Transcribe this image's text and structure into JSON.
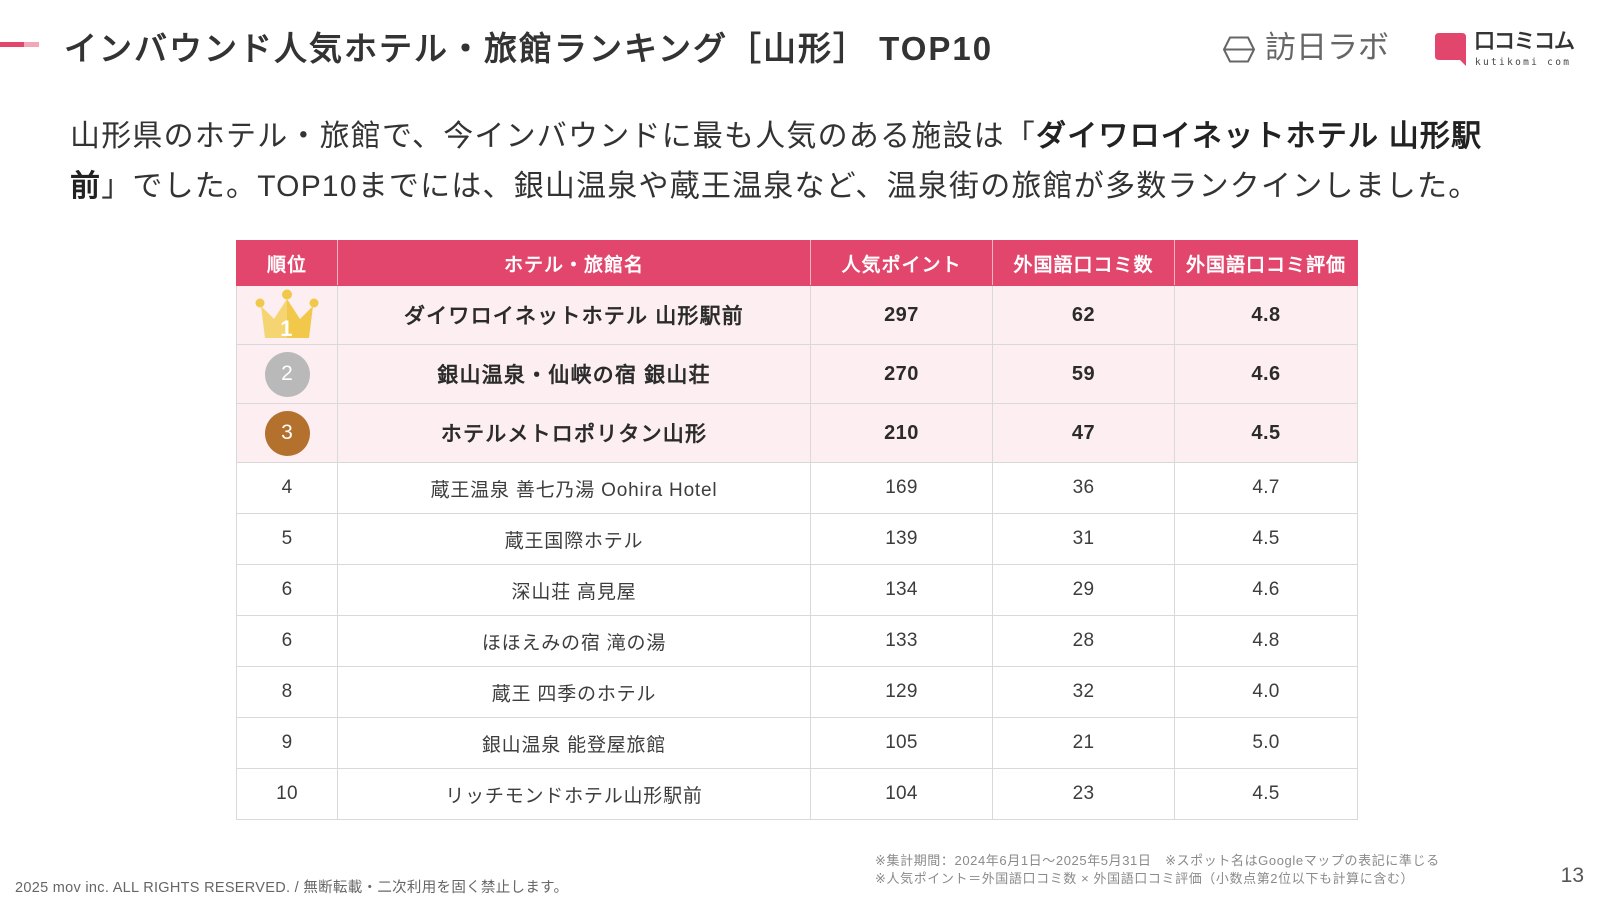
{
  "theme": {
    "accent_color": "#e2466c",
    "accent_light_color": "#f2a6b7",
    "header_bg": "#e2466c",
    "highlight_row_bg": "#fdeef2",
    "gold": "#f2c84b",
    "silver": "#b9b9b9",
    "bronze": "#b4702d"
  },
  "header": {
    "title": "インバウンド人気ホテル・旅館ランキング［山形］ TOP10"
  },
  "logos": {
    "honichi_labo": {
      "icon": "honichi-labo-logo-icon",
      "text": "訪日ラボ"
    },
    "kutikomi_com": {
      "icon": "kutikomi-com-logo-icon",
      "text": "口コミコム",
      "subtext": "kutikomi com"
    }
  },
  "intro": {
    "before": "山形県のホテル・旅館で、今インバウンドに最も人気のある施設は「",
    "highlight": "ダイワロイネットホテル 山形駅前",
    "after": "」でした。TOP10までには、銀山温泉や蔵王温泉など、温泉街の旅館が多数ランクインしました。"
  },
  "table": {
    "columns": [
      "順位",
      "ホテル・旅館名",
      "人気ポイント",
      "外国語口コミ数",
      "外国語口コミ評価"
    ],
    "rows": [
      {
        "rank": "1",
        "badge": "gold-crown-icon",
        "name": "ダイワロイネットホテル 山形駅前",
        "points": "297",
        "reviews": "62",
        "rating": "4.8"
      },
      {
        "rank": "2",
        "badge": "silver-circle-badge",
        "name": "銀山温泉・仙峡の宿 銀山荘",
        "points": "270",
        "reviews": "59",
        "rating": "4.6"
      },
      {
        "rank": "3",
        "badge": "bronze-circle-badge",
        "name": "ホテルメトロポリタン山形",
        "points": "210",
        "reviews": "47",
        "rating": "4.5"
      },
      {
        "rank": "4",
        "name": "蔵王温泉 善七乃湯 Oohira Hotel",
        "points": "169",
        "reviews": "36",
        "rating": "4.7"
      },
      {
        "rank": "5",
        "name": "蔵王国際ホテル",
        "points": "139",
        "reviews": "31",
        "rating": "4.5"
      },
      {
        "rank": "6",
        "name": "深山荘 高見屋",
        "points": "134",
        "reviews": "29",
        "rating": "4.6"
      },
      {
        "rank": "6",
        "name": "ほほえみの宿 滝の湯",
        "points": "133",
        "reviews": "28",
        "rating": "4.8"
      },
      {
        "rank": "8",
        "name": "蔵王 四季のホテル",
        "points": "129",
        "reviews": "32",
        "rating": "4.0"
      },
      {
        "rank": "9",
        "name": "銀山温泉 能登屋旅館",
        "points": "105",
        "reviews": "21",
        "rating": "5.0"
      },
      {
        "rank": "10",
        "name": "リッチモンドホテル山形駅前",
        "points": "104",
        "reviews": "23",
        "rating": "4.5"
      }
    ]
  },
  "notes": {
    "period_and_naming": "※集計期間：2024年6月1日〜2025年5月31日　※スポット名はGoogleマップの表記に準じる",
    "points_formula": "※人気ポイント＝外国語口コミ数 × 外国語口コミ評価（小数点第2位以下も計算に含む）"
  },
  "footer": {
    "copyright": "2025 mov inc. ALL RIGHTS RESERVED. / 無断転載・二次利用を固く禁止します。",
    "page_number": "13"
  }
}
